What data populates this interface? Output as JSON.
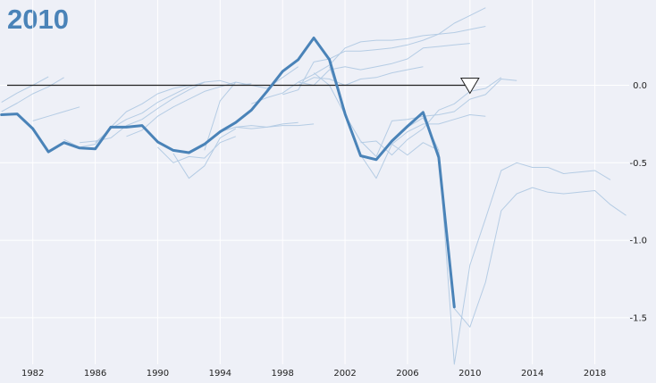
{
  "chart_data": {
    "type": "line",
    "title": "2010",
    "xlabel": "",
    "ylabel": "",
    "x_ticks": [
      1982,
      1986,
      1990,
      1994,
      1998,
      2002,
      2006,
      2010,
      2014,
      2018
    ],
    "y_ticks": [
      0.0,
      -0.5,
      -1.0,
      -1.5
    ],
    "y_tick_labels": [
      "0.0",
      "-0.5",
      "-1.0",
      "-1.5"
    ],
    "xlim": [
      1979.9,
      2020.2
    ],
    "ylim": [
      -1.8,
      0.55
    ],
    "grid": true,
    "reference_line": {
      "y": 0.0
    },
    "marker": {
      "x": 2010,
      "y": 0.0,
      "shape": "triangle-down"
    },
    "colors": {
      "highlight": "#4a83b8",
      "faint": "#b5cce4",
      "reference": "#222222",
      "grid": "#ffffff"
    },
    "highlight_series": {
      "x": [
        1980,
        1981,
        1982,
        1983,
        1984,
        1985,
        1986,
        1987,
        1988,
        1989,
        1990,
        1991,
        1992,
        1993,
        1994,
        1995,
        1996,
        1997,
        1998,
        1999,
        2000,
        2001,
        2002,
        2003,
        2004,
        2005,
        2006,
        2007,
        2008,
        2009
      ],
      "y": [
        -0.19,
        -0.185,
        -0.28,
        -0.43,
        -0.37,
        -0.405,
        -0.41,
        -0.27,
        -0.27,
        -0.26,
        -0.365,
        -0.42,
        -0.435,
        -0.38,
        -0.3,
        -0.24,
        -0.16,
        -0.04,
        0.09,
        0.165,
        0.305,
        0.165,
        -0.185,
        -0.455,
        -0.48,
        -0.36,
        -0.265,
        -0.175,
        -0.465,
        -1.43
      ]
    },
    "faint_series": [
      {
        "x": [
          1980,
          1981,
          1982,
          1983
        ],
        "y": [
          -0.11,
          -0.05,
          0.0,
          0.055
        ]
      },
      {
        "x": [
          1980,
          1981,
          1982,
          1983,
          1984
        ],
        "y": [
          -0.17,
          -0.115,
          -0.055,
          -0.01,
          0.05
        ]
      },
      {
        "x": [
          1982,
          1983,
          1984,
          1985
        ],
        "y": [
          -0.23,
          -0.2,
          -0.17,
          -0.14
        ]
      },
      {
        "x": [
          1984,
          1985,
          1986,
          1987,
          1988,
          1989,
          1990,
          1991,
          1992
        ],
        "y": [
          -0.35,
          -0.4,
          -0.38,
          -0.27,
          -0.17,
          -0.12,
          -0.055,
          -0.02,
          0.0
        ]
      },
      {
        "x": [
          1985,
          1986,
          1987,
          1988,
          1989,
          1990,
          1991,
          1992,
          1993
        ],
        "y": [
          -0.37,
          -0.36,
          -0.34,
          -0.26,
          -0.22,
          -0.15,
          -0.085,
          -0.03,
          0.02
        ]
      },
      {
        "x": [
          1986,
          1987,
          1988,
          1989,
          1990,
          1991,
          1992,
          1993,
          1994,
          1995,
          1996
        ],
        "y": [
          -0.37,
          -0.28,
          -0.22,
          -0.18,
          -0.11,
          -0.06,
          -0.01,
          0.02,
          0.03,
          0.0,
          0.01
        ]
      },
      {
        "x": [
          1988,
          1989,
          1990,
          1991,
          1992,
          1993,
          1994,
          1995
        ],
        "y": [
          -0.33,
          -0.29,
          -0.2,
          -0.14,
          -0.09,
          -0.04,
          -0.01,
          0.02
        ]
      },
      {
        "x": [
          1990,
          1991,
          1992,
          1993,
          1994,
          1995
        ],
        "y": [
          -0.4,
          -0.5,
          -0.46,
          -0.47,
          -0.37,
          -0.33
        ]
      },
      {
        "x": [
          1991,
          1992,
          1993,
          1994,
          1995
        ],
        "y": [
          -0.44,
          -0.6,
          -0.52,
          -0.34,
          -0.28
        ]
      },
      {
        "x": [
          1993,
          1994,
          1995,
          1996,
          1997,
          1998,
          1999
        ],
        "y": [
          -0.42,
          -0.1,
          0.02,
          0.0,
          -0.02,
          0.05,
          0.12
        ]
      },
      {
        "x": [
          1994,
          1995,
          1996,
          1997,
          1998,
          1999
        ],
        "y": [
          -0.3,
          -0.27,
          -0.26,
          -0.27,
          -0.25,
          -0.24
        ]
      },
      {
        "x": [
          1995,
          1996,
          1997,
          1998,
          1999,
          2000
        ],
        "y": [
          -0.27,
          -0.28,
          -0.27,
          -0.26,
          -0.26,
          -0.25
        ]
      },
      {
        "x": [
          1996,
          1997,
          1998,
          1999,
          2000,
          2001,
          2002,
          2003,
          2004,
          2005,
          2006,
          2007,
          2008,
          2009,
          2010,
          2011
        ],
        "y": [
          -0.12,
          -0.08,
          -0.05,
          0.02,
          0.07,
          0.13,
          0.24,
          0.28,
          0.29,
          0.29,
          0.3,
          0.32,
          0.33,
          0.34,
          0.36,
          0.38
        ]
      },
      {
        "x": [
          1998,
          1999,
          2000,
          2001,
          2002,
          2003,
          2004,
          2005,
          2006,
          2007,
          2008,
          2009,
          2010,
          2011
        ],
        "y": [
          -0.06,
          -0.03,
          0.15,
          0.17,
          0.22,
          0.22,
          0.23,
          0.24,
          0.26,
          0.29,
          0.33,
          0.4,
          0.45,
          0.5
        ]
      },
      {
        "x": [
          1999,
          2000,
          2001,
          2002,
          2003,
          2004,
          2005,
          2006,
          2007,
          2008,
          2009,
          2010
        ],
        "y": [
          0.02,
          0.0,
          0.1,
          0.12,
          0.1,
          0.12,
          0.14,
          0.17,
          0.24,
          0.25,
          0.26,
          0.27
        ]
      },
      {
        "x": [
          1999,
          2000,
          2001,
          2002,
          2003,
          2004,
          2005,
          2006,
          2007
        ],
        "y": [
          0.0,
          0.05,
          0.04,
          0.0,
          0.04,
          0.05,
          0.08,
          0.1,
          0.12
        ]
      },
      {
        "x": [
          2000,
          2001,
          2002,
          2003,
          2004,
          2005,
          2006,
          2007,
          2008,
          2009,
          2010,
          2011,
          2012,
          2013
        ],
        "y": [
          0.08,
          0.0,
          -0.19,
          -0.36,
          -0.46,
          -0.23,
          -0.22,
          -0.2,
          -0.19,
          -0.17,
          -0.09,
          -0.06,
          0.04,
          0.03
        ]
      },
      {
        "x": [
          2001,
          2002,
          2003,
          2004,
          2005,
          2006,
          2007,
          2008,
          2009,
          2010,
          2011
        ],
        "y": [
          0.12,
          -0.17,
          -0.45,
          -0.6,
          -0.38,
          -0.3,
          -0.25,
          -0.25,
          -0.22,
          -0.19,
          -0.2
        ]
      },
      {
        "x": [
          2003,
          2004,
          2005,
          2006,
          2007,
          2008,
          2009,
          2010,
          2011,
          2012
        ],
        "y": [
          -0.37,
          -0.36,
          -0.45,
          -0.35,
          -0.28,
          -0.16,
          -0.12,
          -0.04,
          -0.02,
          0.05
        ]
      },
      {
        "x": [
          2005,
          2006,
          2007,
          2008,
          2009,
          2010,
          2011,
          2012,
          2013,
          2014,
          2015,
          2016,
          2017,
          2018,
          2019
        ],
        "y": [
          -0.38,
          -0.45,
          -0.37,
          -0.42,
          -1.8,
          -1.16,
          -0.86,
          -0.55,
          -0.5,
          -0.53,
          -0.53,
          -0.57,
          -0.56,
          -0.55,
          -0.61
        ]
      },
      {
        "x": [
          2006,
          2007,
          2008,
          2009,
          2010,
          2011,
          2012,
          2013,
          2014,
          2015,
          2016,
          2017,
          2018,
          2019,
          2020
        ],
        "y": [
          -0.27,
          -0.21,
          -0.42,
          -1.44,
          -1.56,
          -1.27,
          -0.81,
          -0.7,
          -0.66,
          -0.69,
          -0.7,
          -0.69,
          -0.68,
          -0.77,
          -0.84
        ]
      }
    ]
  }
}
